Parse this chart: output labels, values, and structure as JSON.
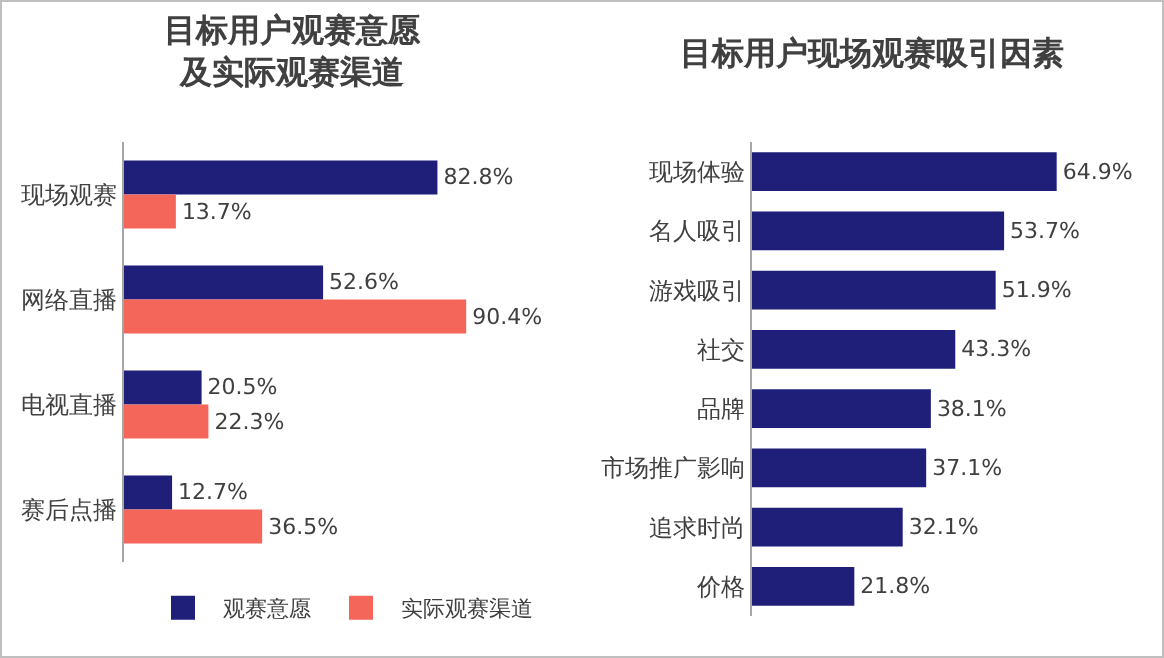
{
  "chart_data": [
    {
      "type": "bar",
      "title": "目标用户观赛意愿及实际观赛渠道",
      "orientation": "horizontal",
      "categories": [
        "现场观赛",
        "网络直播",
        "电视直播",
        "赛后点播"
      ],
      "legend": "bottom",
      "series": [
        {
          "name": "观赛意愿",
          "color": "#1f1f7a",
          "values": [
            82.8,
            52.6,
            20.5,
            12.7
          ],
          "value_labels": [
            "82.8%",
            "52.6%",
            "20.5%",
            "12.7%"
          ]
        },
        {
          "name": "实际观赛渠道",
          "color": "#f4665a",
          "values": [
            13.7,
            90.4,
            22.3,
            36.5
          ],
          "value_labels": [
            "13.7%",
            "90.4%",
            "22.3%",
            "36.5%"
          ]
        }
      ]
    },
    {
      "type": "bar",
      "title": "目标用户现场观赛吸引因素",
      "orientation": "horizontal",
      "categories": [
        "现场体验",
        "名人吸引",
        "游戏吸引",
        "社交",
        "品牌",
        "市场推广影响",
        "追求时尚",
        "价格"
      ],
      "series": [
        {
          "color": "#1f1f7a",
          "values": [
            64.9,
            53.7,
            51.9,
            43.3,
            38.1,
            37.1,
            32.1,
            21.8
          ],
          "value_labels": [
            "64.9%",
            "53.7%",
            "51.9%",
            "43.3%",
            "38.1%",
            "37.1%",
            "32.1%",
            "21.8%"
          ]
        }
      ]
    }
  ]
}
